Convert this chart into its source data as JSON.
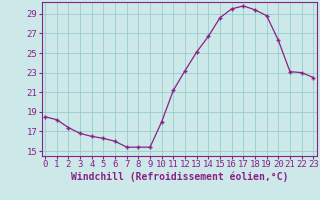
{
  "hours": [
    0,
    1,
    2,
    3,
    4,
    5,
    6,
    7,
    8,
    9,
    10,
    11,
    12,
    13,
    14,
    15,
    16,
    17,
    18,
    19,
    20,
    21,
    22,
    23
  ],
  "values": [
    18.5,
    18.2,
    17.4,
    16.8,
    16.5,
    16.3,
    16.0,
    15.4,
    15.4,
    15.4,
    18.0,
    21.2,
    23.2,
    25.1,
    26.7,
    28.6,
    29.5,
    29.8,
    29.4,
    28.8,
    26.3,
    23.1,
    23.0,
    22.5
  ],
  "line_color": "#882288",
  "marker_color": "#882288",
  "bg_color": "#cce8e8",
  "grid_color": "#99cccc",
  "text_color": "#882288",
  "xlabel": "Windchill (Refroidissement éolien,°C)",
  "ylim_min": 14.5,
  "ylim_max": 30.2,
  "xlim_min": -0.3,
  "xlim_max": 23.3,
  "yticks": [
    15,
    17,
    19,
    21,
    23,
    25,
    27,
    29
  ],
  "tick_fontsize": 6.5,
  "label_fontsize": 7.0
}
